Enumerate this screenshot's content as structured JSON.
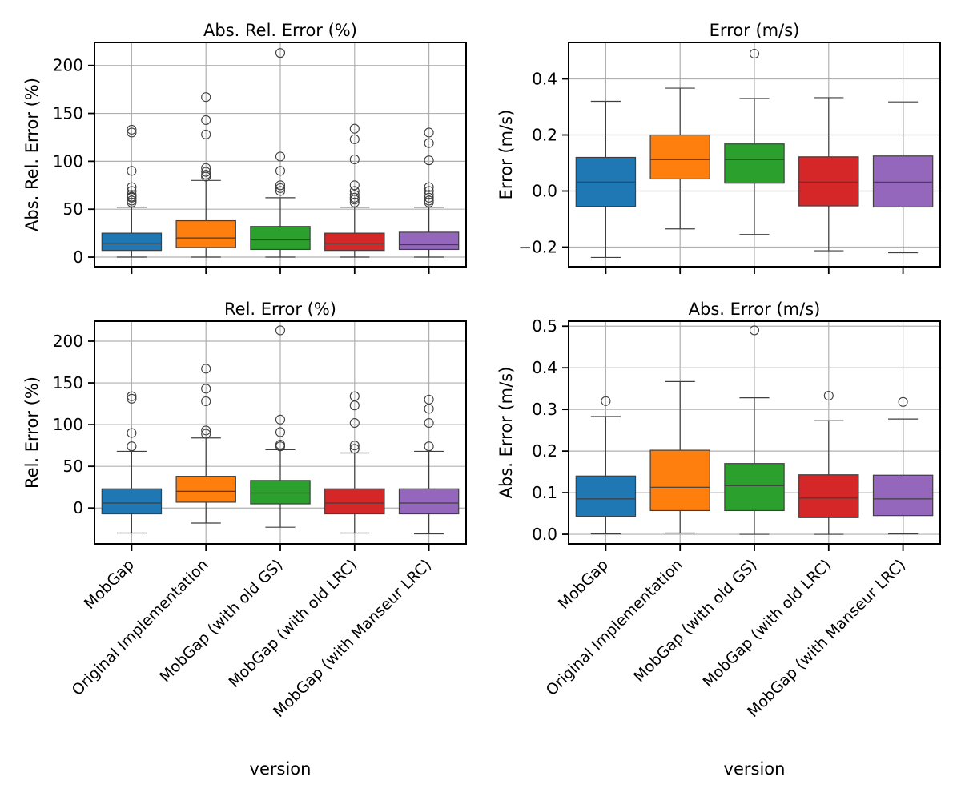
{
  "figure": {
    "xlabel": "version",
    "categories": [
      "MobGap",
      "Original Implementation",
      "MobGap (with old GS)",
      "MobGap (with old LRC)",
      "MobGap (with Manseur LRC)"
    ],
    "colors": [
      "#1f77b4",
      "#ff7f0e",
      "#2ca02c",
      "#d62728",
      "#9467bd"
    ]
  },
  "chart_data": [
    {
      "type": "box",
      "title": "Abs. Rel. Error (%)",
      "ylabel": "Abs. Rel. Error (%)",
      "ylim": [
        -10,
        224
      ],
      "yticks": [
        0,
        50,
        100,
        150,
        200
      ],
      "grid": true,
      "boxes": [
        {
          "category": "MobGap",
          "whislo": 0,
          "q1": 7,
          "med": 14,
          "q3": 25,
          "whishi": 52,
          "fliers": [
            57,
            59,
            62,
            63,
            65,
            69,
            73,
            90,
            130,
            133
          ]
        },
        {
          "category": "Original Implementation",
          "whislo": 0,
          "q1": 10,
          "med": 20,
          "q3": 38,
          "whishi": 80,
          "fliers": [
            84,
            86,
            89,
            93,
            128,
            143,
            167
          ]
        },
        {
          "category": "MobGap (with old GS)",
          "whislo": 0,
          "q1": 8,
          "med": 18,
          "q3": 32,
          "whishi": 62,
          "fliers": [
            69,
            72,
            75,
            90,
            105,
            213
          ]
        },
        {
          "category": "MobGap (with old LRC)",
          "whislo": 0,
          "q1": 7,
          "med": 14,
          "q3": 25,
          "whishi": 52,
          "fliers": [
            57,
            60,
            62,
            65,
            69,
            75,
            102,
            123,
            134
          ]
        },
        {
          "category": "MobGap (with Manseur LRC)",
          "whislo": 0,
          "q1": 8,
          "med": 13,
          "q3": 26,
          "whishi": 52,
          "fliers": [
            57,
            59,
            62,
            65,
            69,
            73,
            101,
            119,
            130
          ]
        }
      ]
    },
    {
      "type": "box",
      "title": "Error (m/s)",
      "ylabel": "Error (m/s)",
      "ylim": [
        -0.27,
        0.53
      ],
      "yticks": [
        -0.2,
        0.0,
        0.2,
        0.4
      ],
      "ytick_labels": [
        "−0.2",
        "0.0",
        "0.2",
        "0.4"
      ],
      "grid": true,
      "boxes": [
        {
          "category": "MobGap",
          "whislo": -0.237,
          "q1": -0.055,
          "med": 0.032,
          "q3": 0.12,
          "whishi": 0.32,
          "fliers": []
        },
        {
          "category": "Original Implementation",
          "whislo": -0.135,
          "q1": 0.043,
          "med": 0.112,
          "q3": 0.2,
          "whishi": 0.367,
          "fliers": []
        },
        {
          "category": "MobGap (with old GS)",
          "whislo": -0.155,
          "q1": 0.028,
          "med": 0.112,
          "q3": 0.168,
          "whishi": 0.33,
          "fliers": [
            0.49
          ]
        },
        {
          "category": "MobGap (with old LRC)",
          "whislo": -0.213,
          "q1": -0.053,
          "med": 0.032,
          "q3": 0.122,
          "whishi": 0.333,
          "fliers": []
        },
        {
          "category": "MobGap (with Manseur LRC)",
          "whislo": -0.22,
          "q1": -0.057,
          "med": 0.032,
          "q3": 0.125,
          "whishi": 0.318,
          "fliers": []
        }
      ]
    },
    {
      "type": "box",
      "title": "Rel. Error (%)",
      "ylabel": "Rel. Error (%)",
      "ylim": [
        -43,
        224
      ],
      "yticks": [
        0,
        50,
        100,
        150,
        200
      ],
      "grid": true,
      "boxes": [
        {
          "category": "MobGap",
          "whislo": -30,
          "q1": -7,
          "med": 6,
          "q3": 23,
          "whishi": 68,
          "fliers": [
            74,
            90,
            131,
            134
          ]
        },
        {
          "category": "Original Implementation",
          "whislo": -18,
          "q1": 7,
          "med": 20,
          "q3": 38,
          "whishi": 84,
          "fliers": [
            89,
            93,
            128,
            143,
            167
          ]
        },
        {
          "category": "MobGap (with old GS)",
          "whislo": -23,
          "q1": 5,
          "med": 18,
          "q3": 33,
          "whishi": 70,
          "fliers": [
            74,
            76,
            91,
            106,
            213
          ]
        },
        {
          "category": "MobGap (with old LRC)",
          "whislo": -30,
          "q1": -7,
          "med": 6,
          "q3": 23,
          "whishi": 66,
          "fliers": [
            71,
            75,
            102,
            123,
            134
          ]
        },
        {
          "category": "MobGap (with Manseur LRC)",
          "whislo": -31,
          "q1": -7,
          "med": 6,
          "q3": 23,
          "whishi": 68,
          "fliers": [
            74,
            102,
            119,
            130
          ]
        }
      ]
    },
    {
      "type": "box",
      "title": "Abs. Error (m/s)",
      "ylabel": "Abs. Error (m/s)",
      "ylim": [
        -0.023,
        0.512
      ],
      "yticks": [
        0.0,
        0.1,
        0.2,
        0.3,
        0.4,
        0.5
      ],
      "ytick_labels": [
        "0.0",
        "0.1",
        "0.2",
        "0.3",
        "0.4",
        "0.5"
      ],
      "grid": true,
      "boxes": [
        {
          "category": "MobGap",
          "whislo": 0.001,
          "q1": 0.043,
          "med": 0.085,
          "q3": 0.14,
          "whishi": 0.283,
          "fliers": [
            0.32
          ]
        },
        {
          "category": "Original Implementation",
          "whislo": 0.003,
          "q1": 0.057,
          "med": 0.113,
          "q3": 0.202,
          "whishi": 0.367,
          "fliers": []
        },
        {
          "category": "MobGap (with old GS)",
          "whislo": 0.0,
          "q1": 0.057,
          "med": 0.117,
          "q3": 0.17,
          "whishi": 0.328,
          "fliers": [
            0.49
          ]
        },
        {
          "category": "MobGap (with old LRC)",
          "whislo": 0.0,
          "q1": 0.04,
          "med": 0.087,
          "q3": 0.143,
          "whishi": 0.273,
          "fliers": [
            0.333
          ]
        },
        {
          "category": "MobGap (with Manseur LRC)",
          "whislo": 0.001,
          "q1": 0.045,
          "med": 0.085,
          "q3": 0.142,
          "whishi": 0.277,
          "fliers": [
            0.318
          ]
        }
      ]
    }
  ]
}
